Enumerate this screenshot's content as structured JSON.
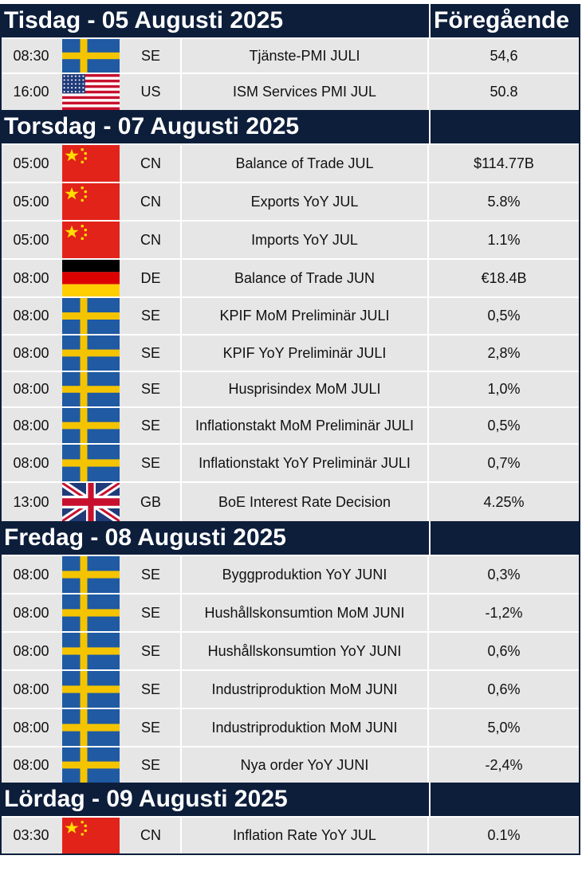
{
  "header": {
    "previous_label": "Föregående"
  },
  "days": [
    {
      "title": "Tisdag - 05 Augusti 2025",
      "rows": [
        {
          "time": "08:30",
          "flag": "sweden-flag-icon",
          "country": "SE",
          "event": "Tjänste-PMI JULI",
          "previous": "54,6"
        },
        {
          "time": "16:00",
          "flag": "usa-flag-icon",
          "country": "US",
          "event": "ISM Services PMI JUL",
          "previous": "50.8"
        }
      ]
    },
    {
      "title": "Torsdag - 07 Augusti 2025",
      "rows": [
        {
          "time": "05:00",
          "flag": "china-flag-icon",
          "country": "CN",
          "event": "Balance of Trade JUL",
          "previous": "$114.77B"
        },
        {
          "time": "05:00",
          "flag": "china-flag-icon",
          "country": "CN",
          "event": "Exports YoY JUL",
          "previous": "5.8%"
        },
        {
          "time": "05:00",
          "flag": "china-flag-icon",
          "country": "CN",
          "event": "Imports YoY JUL",
          "previous": "1.1%"
        },
        {
          "time": "08:00",
          "flag": "germany-flag-icon",
          "country": "DE",
          "event": "Balance of Trade JUN",
          "previous": "€18.4B"
        },
        {
          "time": "08:00",
          "flag": "sweden-flag-icon",
          "country": "SE",
          "event": "KPIF MoM Preliminär JULI",
          "previous": "0,5%"
        },
        {
          "time": "08:00",
          "flag": "sweden-flag-icon",
          "country": "SE",
          "event": "KPIF YoY Preliminär JULI",
          "previous": "2,8%"
        },
        {
          "time": "08:00",
          "flag": "sweden-flag-icon",
          "country": "SE",
          "event": "Husprisindex MoM JULI",
          "previous": "1,0%"
        },
        {
          "time": "08:00",
          "flag": "sweden-flag-icon",
          "country": "SE",
          "event": "Inflationstakt MoM Preliminär JULI",
          "previous": "0,5%"
        },
        {
          "time": "08:00",
          "flag": "sweden-flag-icon",
          "country": "SE",
          "event": "Inflationstakt YoY Preliminär JULI",
          "previous": "0,7%"
        },
        {
          "time": "13:00",
          "flag": "uk-flag-icon",
          "country": "GB",
          "event": "BoE Interest Rate Decision",
          "previous": "4.25%"
        }
      ]
    },
    {
      "title": "Fredag - 08 Augusti 2025",
      "rows": [
        {
          "time": "08:00",
          "flag": "sweden-flag-icon",
          "country": "SE",
          "event": "Byggproduktion YoY JUNI",
          "previous": "0,3%"
        },
        {
          "time": "08:00",
          "flag": "sweden-flag-icon",
          "country": "SE",
          "event": "Hushållskonsumtion MoM JUNI",
          "previous": "-1,2%"
        },
        {
          "time": "08:00",
          "flag": "sweden-flag-icon",
          "country": "SE",
          "event": "Hushållskonsumtion YoY JUNI",
          "previous": "0,6%"
        },
        {
          "time": "08:00",
          "flag": "sweden-flag-icon",
          "country": "SE",
          "event": "Industriproduktion MoM JUNI",
          "previous": "0,6%"
        },
        {
          "time": "08:00",
          "flag": "sweden-flag-icon",
          "country": "SE",
          "event": "Industriproduktion MoM JUNI",
          "previous": "5,0%"
        },
        {
          "time": "08:00",
          "flag": "sweden-flag-icon",
          "country": "SE",
          "event": "Nya order YoY JUNI",
          "previous": "-2,4%"
        }
      ]
    },
    {
      "title": "Lördag - 09 Augusti 2025",
      "rows": [
        {
          "time": "03:30",
          "flag": "china-flag-icon",
          "country": "CN",
          "event": "Inflation Rate YoY JUL",
          "previous": "0.1%"
        }
      ]
    }
  ]
}
